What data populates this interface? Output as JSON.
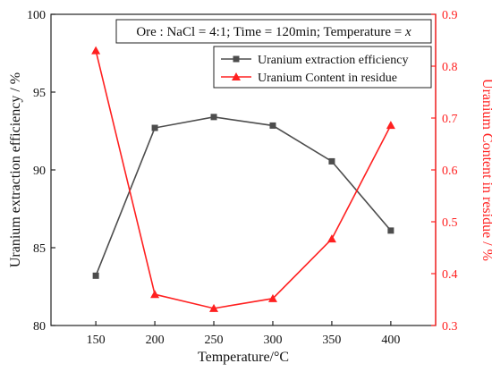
{
  "chart_data": {
    "type": "line",
    "annotation": "Ore : NaCl = 4:1; Time = 120min; Temperature = x",
    "xlabel": "Temperature/°C",
    "ylabel_left": "Uranium extraction efficiency / %",
    "ylabel_right": "Uranium Content in residue / %",
    "x": [
      150,
      200,
      250,
      300,
      350,
      400
    ],
    "xlim": [
      112,
      438
    ],
    "ylim_left": [
      80,
      100
    ],
    "ylim_right": [
      0.3,
      0.9
    ],
    "x_ticks": [
      150,
      200,
      250,
      300,
      350,
      400
    ],
    "y_ticks_left": [
      80,
      85,
      90,
      95,
      100
    ],
    "y_ticks_right": [
      0.3,
      0.4,
      0.5,
      0.6,
      0.7,
      0.8,
      0.9
    ],
    "legend_position": "top-right",
    "grid": false,
    "series": [
      {
        "name": "Uranium extraction efficiency",
        "axis": "left",
        "marker": "square",
        "color": "#4d4d4d",
        "values": [
          83.2,
          92.7,
          93.4,
          92.85,
          90.55,
          86.1
        ]
      },
      {
        "name": "Uranium Content in residue",
        "axis": "right",
        "marker": "triangle",
        "color": "#ff2020",
        "values": [
          0.83,
          0.36,
          0.333,
          0.352,
          0.467,
          0.686
        ]
      }
    ]
  }
}
